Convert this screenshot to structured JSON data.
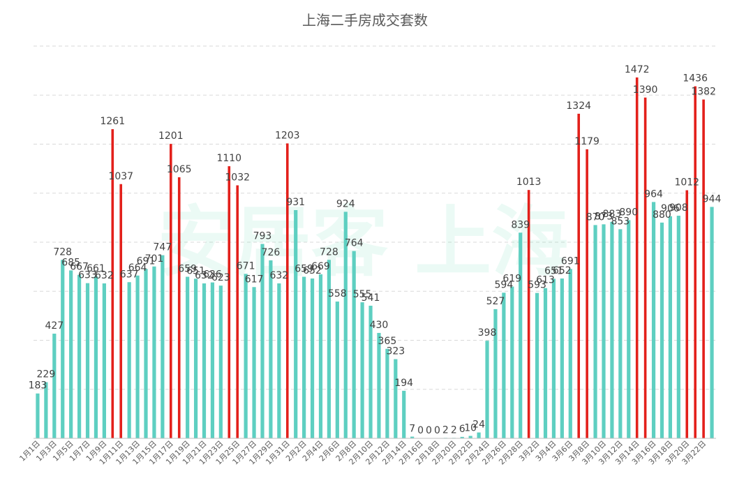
{
  "chart_data": {
    "type": "bar",
    "title": "上海二手房成交套数",
    "xlabel": "",
    "ylabel": "",
    "ylim": [
      0,
      1600
    ],
    "grid": true,
    "legend": "none",
    "categories": [
      "1月1日",
      "1月2日",
      "1月3日",
      "1月4日",
      "1月5日",
      "1月6日",
      "1月7日",
      "1月8日",
      "1月9日",
      "1月10日",
      "1月11日",
      "1月12日",
      "1月13日",
      "1月14日",
      "1月15日",
      "1月16日",
      "1月17日",
      "1月18日",
      "1月19日",
      "1月20日",
      "1月21日",
      "1月22日",
      "1月23日",
      "1月24日",
      "1月25日",
      "1月26日",
      "1月27日",
      "1月28日",
      "1月29日",
      "1月30日",
      "1月31日",
      "2月1日",
      "2月2日",
      "2月3日",
      "2月4日",
      "2月5日",
      "2月6日",
      "2月7日",
      "2月8日",
      "2月9日",
      "2月10日",
      "2月11日",
      "2月12日",
      "2月13日",
      "2月14日",
      "2月15日",
      "2月16日",
      "2月17日",
      "2月18日",
      "2月19日",
      "2月20日",
      "2月21日",
      "2月22日",
      "2月23日",
      "2月24日",
      "2月25日",
      "2月26日",
      "2月27日",
      "2月28日",
      "3月1日",
      "3月2日",
      "3月3日",
      "3月4日",
      "3月5日",
      "3月6日",
      "3月7日",
      "3月8日",
      "3月9日",
      "3月10日",
      "3月11日",
      "3月12日",
      "3月13日",
      "3月14日",
      "3月15日",
      "3月16日",
      "3月17日",
      "3月18日",
      "3月19日",
      "3月20日",
      "3月21日",
      "3月22日",
      "3月23日"
    ],
    "tick_labels": [
      "1月1日",
      "1月3日",
      "1月5日",
      "1月7日",
      "1月9日",
      "1月11日",
      "1月13日",
      "1月15日",
      "1月17日",
      "1月19日",
      "1月21日",
      "1月23日",
      "1月25日",
      "1月27日",
      "1月29日",
      "1月31日",
      "2月2日",
      "2月4日",
      "2月6日",
      "2月8日",
      "2月10日",
      "2月12日",
      "2月14日",
      "2月16日",
      "2月18日",
      "2月20日",
      "2月22日",
      "2月24日",
      "2月26日",
      "2月28日",
      "3月2日",
      "3月4日",
      "3月6日",
      "3月8日",
      "3月10日",
      "3月12日",
      "3月14日",
      "3月16日",
      "3月18日",
      "3月20日",
      "3月22日"
    ],
    "values": [
      183,
      229,
      427,
      728,
      685,
      667,
      633,
      661,
      632,
      1261,
      1037,
      637,
      664,
      691,
      701,
      747,
      1201,
      1065,
      659,
      651,
      632,
      636,
      623,
      1110,
      1032,
      671,
      617,
      793,
      726,
      632,
      1203,
      931,
      659,
      652,
      669,
      728,
      558,
      924,
      764,
      555,
      541,
      430,
      365,
      323,
      194,
      7,
      0,
      0,
      0,
      2,
      2,
      6,
      10,
      24,
      398,
      527,
      594,
      619,
      839,
      1013,
      593,
      613,
      651,
      652,
      691,
      1324,
      1179,
      870,
      873,
      883,
      853,
      890,
      1472,
      1390,
      964,
      880,
      906,
      908,
      1012,
      1436,
      1382,
      944
    ],
    "data_labels": [
      "183",
      "229",
      "427",
      "728",
      "685",
      "667",
      "633",
      "661",
      "632",
      "1261",
      "1037",
      "637",
      "664",
      "691",
      "701",
      "747",
      "1201",
      "1065",
      "659",
      "651",
      "632",
      "636",
      "623",
      "1110",
      "1032",
      "671",
      "617",
      "793",
      "726",
      "632",
      "1203",
      "931",
      "659",
      "652",
      "669",
      "728",
      "558",
      "924",
      "764",
      "555",
      "541",
      "430",
      "365",
      "323",
      "194",
      "7",
      "0",
      "0",
      "0",
      "2",
      "2",
      "6",
      "10",
      "24",
      "398",
      "527",
      "594",
      "619",
      "839",
      "1013",
      "593",
      "613",
      "651",
      "652",
      "691",
      "1324",
      "1179",
      "870",
      "873",
      "883",
      "853",
      "890",
      "1472",
      "1390",
      "964",
      "880",
      "906",
      "908",
      "1012",
      "1436",
      "1382",
      "944"
    ],
    "highlight": [
      0,
      0,
      0,
      0,
      0,
      0,
      0,
      0,
      0,
      1,
      1,
      0,
      0,
      0,
      0,
      0,
      1,
      1,
      0,
      0,
      0,
      0,
      0,
      1,
      1,
      0,
      0,
      0,
      0,
      0,
      1,
      0,
      0,
      0,
      0,
      0,
      0,
      0,
      0,
      0,
      0,
      0,
      0,
      0,
      0,
      0,
      0,
      0,
      0,
      0,
      0,
      0,
      0,
      0,
      0,
      0,
      0,
      0,
      0,
      1,
      0,
      0,
      0,
      0,
      0,
      1,
      1,
      0,
      0,
      0,
      0,
      0,
      1,
      1,
      0,
      0,
      0,
      0,
      1,
      1,
      1,
      0
    ],
    "colors": {
      "normal": "#5ecfc1",
      "highlight": "#e3201b"
    }
  },
  "watermark": "安居客 上海",
  "icons": {
    "watermark": "anjuke-logo-watermark"
  }
}
